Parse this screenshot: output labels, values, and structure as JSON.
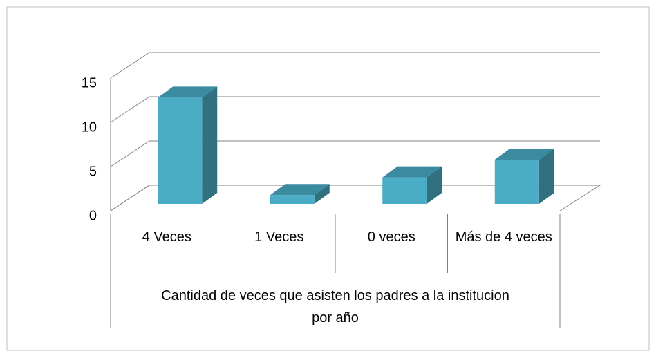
{
  "chart_data": {
    "type": "bar",
    "categories": [
      "4 Veces",
      "1 Veces",
      "0 veces",
      "Más de 4 veces"
    ],
    "values": [
      12,
      1,
      3,
      5
    ],
    "color": "#4bacc6",
    "ylim": [
      0,
      15
    ],
    "yticks": [
      0,
      5,
      10,
      15
    ],
    "grid": true,
    "x_label": "Cantidad de veces que asisten los padres a la institucion por año"
  }
}
